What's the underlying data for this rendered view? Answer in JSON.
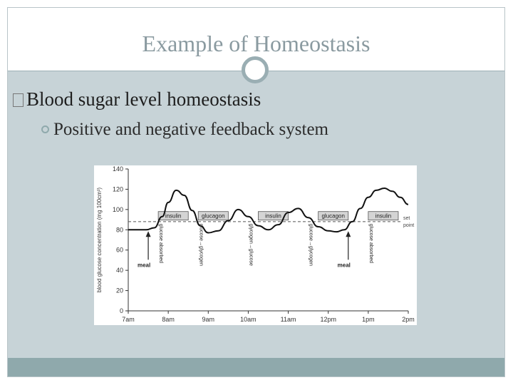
{
  "slide": {
    "title": "Example of Homeostasis",
    "bullet1": "Blood sugar level  homeostasis",
    "bullet2": "Positive and negative feedback system"
  },
  "chart_data": {
    "type": "line",
    "ylabel": "blood glucose concentration (mg 100cm³)",
    "y_ticks": [
      0,
      20,
      40,
      60,
      80,
      100,
      120,
      140
    ],
    "ylim": [
      0,
      140
    ],
    "x_ticks": [
      "7am",
      "8am",
      "9am",
      "10am",
      "11am",
      "12pm",
      "1pm",
      "2pm"
    ],
    "series": [
      {
        "x": [
          0,
          0.25,
          0.45,
          0.65,
          0.85,
          1.0,
          1.2,
          1.4,
          1.6,
          1.8,
          2.0,
          2.25,
          2.5,
          2.75,
          3.0,
          3.25,
          3.5,
          3.75,
          4.0,
          4.25,
          4.5,
          4.75,
          5.0,
          5.2,
          5.4,
          5.6,
          5.8,
          6.0,
          6.2,
          6.4,
          6.6,
          6.8,
          7.0
        ],
        "y": [
          80,
          80,
          80,
          82,
          93,
          107,
          119,
          114,
          99,
          84,
          77,
          79,
          89,
          100,
          93,
          84,
          80,
          85,
          97,
          101,
          92,
          83,
          79,
          78,
          80,
          88,
          101,
          112,
          119,
          121,
          118,
          112,
          105
        ]
      }
    ],
    "set_point": {
      "value": 88,
      "label_lines": [
        "set",
        "point"
      ]
    },
    "hormone_boxes": [
      {
        "label": "insulin",
        "x_start": 0.75,
        "x_end": 1.5
      },
      {
        "label": "glucagon",
        "x_start": 1.75,
        "x_end": 2.5
      },
      {
        "label": "insulin",
        "x_start": 3.25,
        "x_end": 4.0
      },
      {
        "label": "glucagon",
        "x_start": 4.75,
        "x_end": 5.5
      },
      {
        "label": "insulin",
        "x_start": 6.0,
        "x_end": 6.75
      }
    ],
    "vertical_annotations": [
      {
        "text": "glucose absorbed",
        "x": 0.75
      },
      {
        "text": "glucose→glycogen",
        "x": 1.75
      },
      {
        "text": "glycogen→glucose",
        "x": 3.0
      },
      {
        "text": "glucose→glycogen",
        "x": 4.5
      },
      {
        "text": "glucose absorbed",
        "x": 6.0
      }
    ],
    "meal_annotations": [
      {
        "text": "meal",
        "x": 0.5,
        "y": 80
      },
      {
        "text": "meal",
        "x": 5.5,
        "y": 80
      }
    ]
  }
}
